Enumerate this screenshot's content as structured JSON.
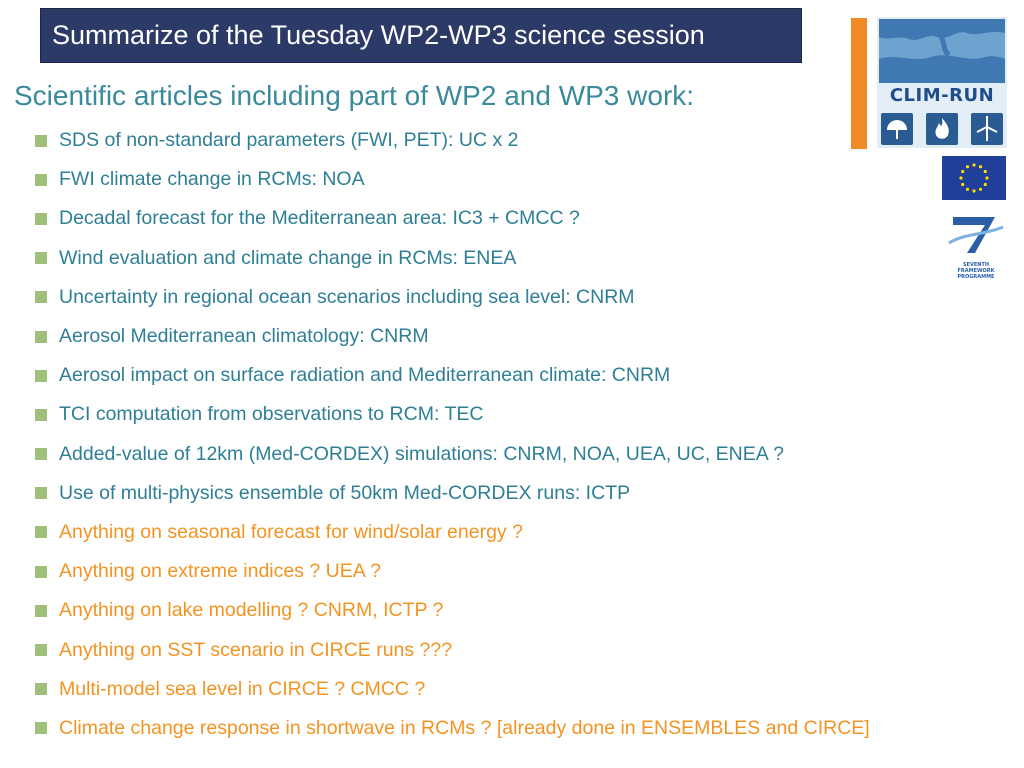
{
  "slide": {
    "title": "Summarize of the Tuesday WP2-WP3 science session",
    "subtitle": "Scientific articles including part of WP2 and WP3 work:",
    "items": [
      {
        "text": "SDS of non-standard parameters (FWI, PET): UC x 2",
        "color": "teal"
      },
      {
        "text": "FWI climate change in RCMs: NOA",
        "color": "teal"
      },
      {
        "text": "Decadal forecast for the Mediterranean area: IC3 + CMCC ?",
        "color": "teal"
      },
      {
        "text": "Wind evaluation and climate change in RCMs: ENEA",
        "color": "teal"
      },
      {
        "text": "Uncertainty in regional ocean scenarios including sea level: CNRM",
        "color": "teal"
      },
      {
        "text": "Aerosol Mediterranean climatology: CNRM",
        "color": "teal"
      },
      {
        "text": "Aerosol impact on surface radiation and Mediterranean climate: CNRM",
        "color": "teal"
      },
      {
        "text": "TCI computation from observations to RCM: TEC",
        "color": "teal"
      },
      {
        "text": "Added-value of 12km (Med-CORDEX) simulations: CNRM, NOA, UEA, UC, ENEA ?",
        "color": "teal"
      },
      {
        "text": "Use of multi-physics ensemble of 50km Med-CORDEX runs: ICTP",
        "color": "teal"
      },
      {
        "text": "Anything on seasonal forecast for wind/solar energy ?",
        "color": "orange"
      },
      {
        "text": "Anything on extreme indices ? UEA ?",
        "color": "orange"
      },
      {
        "text": "Anything on lake modelling ? CNRM, ICTP ?",
        "color": "orange"
      },
      {
        "text": "Anything on SST scenario in CIRCE runs ???",
        "color": "orange"
      },
      {
        "text": "Multi-model sea level in CIRCE ? CMCC ?",
        "color": "orange"
      },
      {
        "text": "Climate change response in shortwave in RCMs ? [already done in ENSEMBLES and CIRCE]",
        "color": "orange"
      }
    ]
  },
  "logos": {
    "climrun": "CLIM-RUN",
    "fp7_line1": "SEVENTH FRAMEWORK",
    "fp7_line2": "PROGRAMME"
  },
  "colors": {
    "title_bg": "#2b3a67",
    "teal": "#2e7f96",
    "orange": "#f39422",
    "bullet": "#9fbf7a",
    "subtitle": "#3a8a9c"
  },
  "icons": [
    "bullet-square-icon",
    "climrun-logo",
    "eu-flag-icon",
    "fp7-logo"
  ]
}
